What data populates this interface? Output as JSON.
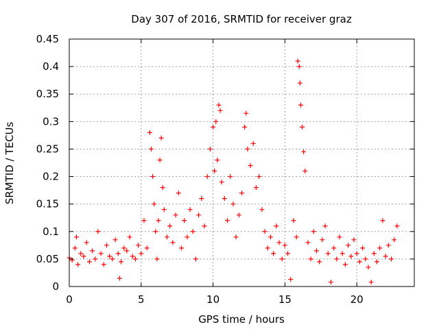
{
  "chart_data": {
    "type": "scatter",
    "title": "Day 307 of 2016, SRMTID for receiver graz",
    "xlabel": "GPS time / hours",
    "ylabel": "SRMTID / TECUs",
    "xlim": [
      0,
      24
    ],
    "ylim": [
      0,
      0.45
    ],
    "x_ticks": [
      0,
      5,
      10,
      15,
      20
    ],
    "x_tick_labels": [
      "0",
      "5",
      "10",
      "15",
      "20"
    ],
    "y_ticks": [
      0,
      0.05,
      0.1,
      0.15,
      0.2,
      0.25,
      0.3,
      0.35,
      0.4,
      0.45
    ],
    "y_tick_labels": [
      "0",
      "0.05",
      "0.1",
      "0.15",
      "0.2",
      "0.25",
      "0.3",
      "0.35",
      "0.4",
      "0.45"
    ],
    "grid": true,
    "marker": "+",
    "colors": {
      "series": "#ff0000",
      "grid": "#a0a0a0",
      "axis": "#000000"
    },
    "series": [
      {
        "name": "SRMTID",
        "points": [
          [
            0.0,
            0.052
          ],
          [
            0.2,
            0.048
          ],
          [
            0.4,
            0.07
          ],
          [
            0.5,
            0.09
          ],
          [
            0.6,
            0.04
          ],
          [
            0.8,
            0.06
          ],
          [
            1.0,
            0.055
          ],
          [
            1.2,
            0.08
          ],
          [
            1.4,
            0.045
          ],
          [
            1.6,
            0.065
          ],
          [
            1.8,
            0.05
          ],
          [
            2.0,
            0.1
          ],
          [
            2.2,
            0.06
          ],
          [
            2.4,
            0.04
          ],
          [
            2.6,
            0.075
          ],
          [
            2.8,
            0.055
          ],
          [
            3.0,
            0.05
          ],
          [
            3.2,
            0.085
          ],
          [
            3.4,
            0.06
          ],
          [
            3.5,
            0.015
          ],
          [
            3.6,
            0.045
          ],
          [
            3.8,
            0.07
          ],
          [
            4.0,
            0.065
          ],
          [
            4.2,
            0.09
          ],
          [
            4.4,
            0.055
          ],
          [
            4.6,
            0.05
          ],
          [
            4.8,
            0.075
          ],
          [
            5.0,
            0.06
          ],
          [
            5.2,
            0.12
          ],
          [
            5.4,
            0.07
          ],
          [
            5.6,
            0.28
          ],
          [
            5.7,
            0.25
          ],
          [
            5.8,
            0.2
          ],
          [
            5.9,
            0.15
          ],
          [
            6.0,
            0.1
          ],
          [
            6.1,
            0.05
          ],
          [
            6.2,
            0.12
          ],
          [
            6.3,
            0.23
          ],
          [
            6.4,
            0.27
          ],
          [
            6.5,
            0.18
          ],
          [
            6.6,
            0.14
          ],
          [
            6.8,
            0.09
          ],
          [
            7.0,
            0.11
          ],
          [
            7.2,
            0.08
          ],
          [
            7.4,
            0.13
          ],
          [
            7.6,
            0.17
          ],
          [
            7.8,
            0.07
          ],
          [
            8.0,
            0.12
          ],
          [
            8.2,
            0.09
          ],
          [
            8.4,
            0.14
          ],
          [
            8.6,
            0.1
          ],
          [
            8.8,
            0.05
          ],
          [
            9.0,
            0.13
          ],
          [
            9.2,
            0.16
          ],
          [
            9.4,
            0.11
          ],
          [
            9.6,
            0.2
          ],
          [
            9.8,
            0.25
          ],
          [
            10.0,
            0.29
          ],
          [
            10.1,
            0.21
          ],
          [
            10.2,
            0.3
          ],
          [
            10.3,
            0.23
          ],
          [
            10.4,
            0.33
          ],
          [
            10.5,
            0.32
          ],
          [
            10.6,
            0.19
          ],
          [
            10.8,
            0.16
          ],
          [
            11.0,
            0.12
          ],
          [
            11.2,
            0.2
          ],
          [
            11.4,
            0.15
          ],
          [
            11.6,
            0.09
          ],
          [
            11.8,
            0.13
          ],
          [
            12.0,
            0.17
          ],
          [
            12.2,
            0.29
          ],
          [
            12.3,
            0.315
          ],
          [
            12.4,
            0.25
          ],
          [
            12.6,
            0.22
          ],
          [
            12.8,
            0.26
          ],
          [
            13.0,
            0.18
          ],
          [
            13.2,
            0.2
          ],
          [
            13.4,
            0.14
          ],
          [
            13.6,
            0.1
          ],
          [
            13.8,
            0.07
          ],
          [
            14.0,
            0.09
          ],
          [
            14.2,
            0.06
          ],
          [
            14.4,
            0.11
          ],
          [
            14.6,
            0.08
          ],
          [
            14.8,
            0.05
          ],
          [
            15.0,
            0.075
          ],
          [
            15.2,
            0.06
          ],
          [
            15.4,
            0.013
          ],
          [
            15.6,
            0.12
          ],
          [
            15.8,
            0.09
          ],
          [
            15.9,
            0.41
          ],
          [
            16.0,
            0.4
          ],
          [
            16.05,
            0.37
          ],
          [
            16.1,
            0.33
          ],
          [
            16.2,
            0.29
          ],
          [
            16.3,
            0.245
          ],
          [
            16.4,
            0.21
          ],
          [
            16.6,
            0.08
          ],
          [
            16.8,
            0.05
          ],
          [
            17.0,
            0.1
          ],
          [
            17.2,
            0.065
          ],
          [
            17.4,
            0.045
          ],
          [
            17.6,
            0.085
          ],
          [
            17.8,
            0.11
          ],
          [
            18.0,
            0.06
          ],
          [
            18.2,
            0.008
          ],
          [
            18.4,
            0.07
          ],
          [
            18.6,
            0.05
          ],
          [
            18.8,
            0.09
          ],
          [
            19.0,
            0.06
          ],
          [
            19.2,
            0.04
          ],
          [
            19.4,
            0.075
          ],
          [
            19.6,
            0.055
          ],
          [
            19.8,
            0.085
          ],
          [
            20.0,
            0.06
          ],
          [
            20.2,
            0.045
          ],
          [
            20.4,
            0.07
          ],
          [
            20.6,
            0.05
          ],
          [
            20.8,
            0.035
          ],
          [
            21.0,
            0.008
          ],
          [
            21.2,
            0.06
          ],
          [
            21.4,
            0.045
          ],
          [
            21.6,
            0.07
          ],
          [
            21.8,
            0.12
          ],
          [
            22.0,
            0.055
          ],
          [
            22.2,
            0.075
          ],
          [
            22.4,
            0.05
          ],
          [
            22.6,
            0.085
          ],
          [
            22.8,
            0.11
          ]
        ]
      }
    ]
  }
}
